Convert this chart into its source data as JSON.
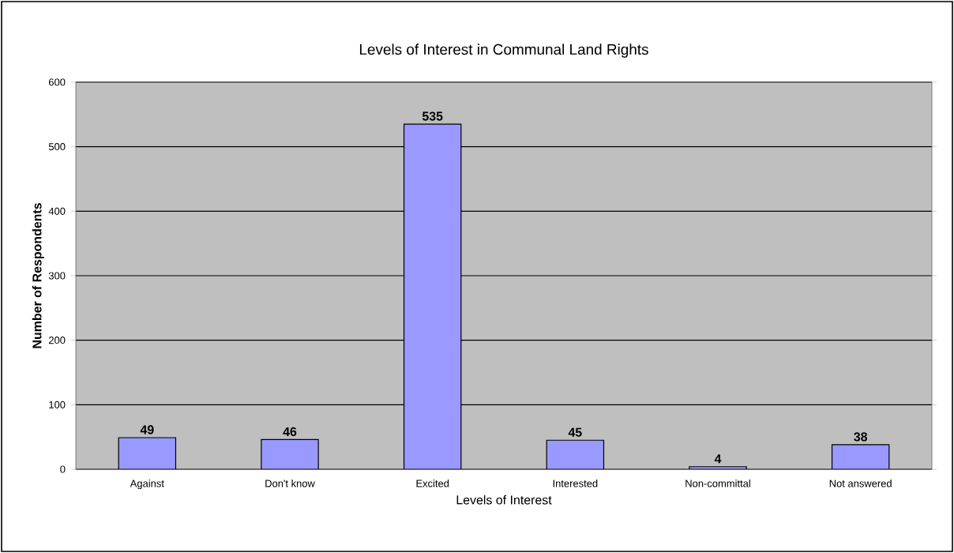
{
  "chart_data": {
    "type": "bar",
    "title": "Levels of Interest in Communal Land Rights",
    "xlabel": "Levels of Interest",
    "ylabel": "Number of Respondents",
    "categories": [
      "Against",
      "Don't know",
      "Excited",
      "Interested",
      "Non-committal",
      "Not answered"
    ],
    "values": [
      49,
      46,
      535,
      45,
      4,
      38
    ],
    "color": "#9999ff",
    "ylim": [
      0,
      600
    ],
    "yticks": [
      0,
      100,
      200,
      300,
      400,
      500,
      600
    ],
    "grid": "y",
    "data_labels": true
  }
}
